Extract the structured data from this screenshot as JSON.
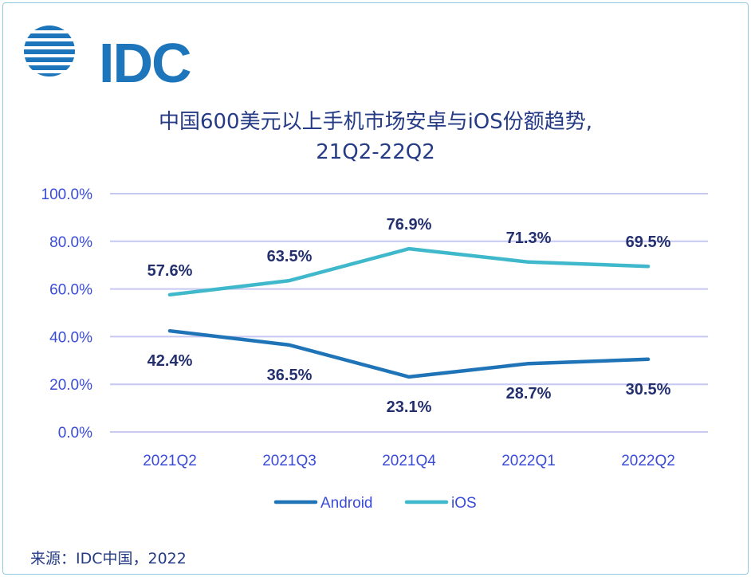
{
  "brand": {
    "logo_text": "IDC",
    "color": "#1d75bb"
  },
  "source": "来源：IDC中国，2022",
  "chart_data": {
    "type": "line",
    "title": "中国600美元以上手机市场安卓与iOS份额趋势,",
    "subtitle": "21Q2-22Q2",
    "categories": [
      "2021Q2",
      "2021Q3",
      "2021Q4",
      "2022Q1",
      "2022Q2"
    ],
    "y_ticks": [
      "0.0%",
      "20.0%",
      "40.0%",
      "60.0%",
      "80.0%",
      "100.0%"
    ],
    "ylim": [
      0,
      100
    ],
    "grid": true,
    "legend_position": "bottom",
    "series": [
      {
        "name": "Android",
        "color": "#1f73b7",
        "values": [
          42.4,
          36.5,
          23.1,
          28.7,
          30.5
        ],
        "labels": [
          "42.4%",
          "36.5%",
          "23.1%",
          "28.7%",
          "30.5%"
        ]
      },
      {
        "name": "iOS",
        "color": "#3fb8cb",
        "values": [
          57.6,
          63.5,
          76.9,
          71.3,
          69.5
        ],
        "labels": [
          "57.6%",
          "63.5%",
          "76.9%",
          "71.3%",
          "69.5%"
        ]
      }
    ]
  }
}
